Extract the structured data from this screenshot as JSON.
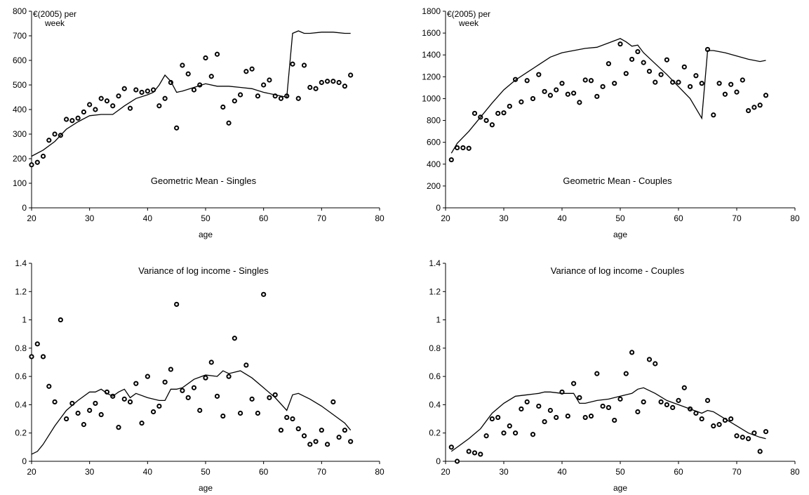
{
  "chart_data": [
    {
      "type": "scatter",
      "title": "Geometric Mean - Singles",
      "unit_label": [
        "€(2005) per",
        "week"
      ],
      "xlabel": "age",
      "ylabel": "",
      "xlim": [
        20,
        80
      ],
      "ylim": [
        0,
        800
      ],
      "xticks": [
        20,
        30,
        40,
        50,
        60,
        70,
        80
      ],
      "yticks": [
        0,
        100,
        200,
        300,
        400,
        500,
        600,
        700,
        800
      ],
      "series": [
        {
          "kind": "points",
          "x": [
            20,
            21,
            22,
            23,
            24,
            25,
            26,
            27,
            28,
            29,
            30,
            31,
            32,
            33,
            34,
            35,
            36,
            37,
            38,
            39,
            40,
            41,
            42,
            43,
            44,
            45,
            46,
            47,
            48,
            49,
            50,
            51,
            52,
            53,
            54,
            55,
            56,
            57,
            58,
            59,
            60,
            61,
            62,
            63,
            64,
            65,
            66,
            67,
            68,
            69,
            70,
            71,
            72,
            73,
            74,
            75
          ],
          "y": [
            175,
            185,
            210,
            275,
            300,
            295,
            360,
            355,
            365,
            390,
            420,
            400,
            445,
            435,
            415,
            455,
            485,
            405,
            480,
            470,
            475,
            480,
            415,
            445,
            510,
            325,
            580,
            545,
            480,
            500,
            610,
            535,
            625,
            410,
            345,
            435,
            460,
            555,
            565,
            455,
            500,
            520,
            455,
            445,
            455,
            585,
            445,
            580,
            490,
            485,
            510,
            515,
            515,
            510,
            495,
            540
          ]
        },
        {
          "kind": "line",
          "x": [
            20,
            22,
            24,
            26,
            28,
            30,
            32,
            34,
            36,
            38,
            40,
            41,
            42,
            43,
            44,
            45,
            46,
            48,
            50,
            52,
            54,
            56,
            58,
            60,
            62,
            64,
            65,
            66,
            67,
            68,
            70,
            72,
            74,
            75
          ],
          "y": [
            210,
            235,
            270,
            320,
            350,
            375,
            380,
            380,
            415,
            445,
            460,
            470,
            500,
            540,
            515,
            470,
            475,
            490,
            505,
            495,
            495,
            490,
            485,
            470,
            460,
            450,
            710,
            720,
            710,
            710,
            715,
            715,
            710,
            710
          ]
        }
      ]
    },
    {
      "type": "scatter",
      "title": "Geometric Mean - Couples",
      "unit_label": [
        "€(2005) per",
        "week"
      ],
      "xlabel": "age",
      "ylabel": "",
      "xlim": [
        20,
        80
      ],
      "ylim": [
        0,
        1800
      ],
      "xticks": [
        20,
        30,
        40,
        50,
        60,
        70,
        80
      ],
      "yticks": [
        0,
        200,
        400,
        600,
        800,
        1000,
        1200,
        1400,
        1600,
        1800
      ],
      "series": [
        {
          "kind": "points",
          "x": [
            21,
            22,
            23,
            24,
            25,
            26,
            27,
            28,
            29,
            30,
            31,
            32,
            33,
            34,
            35,
            36,
            37,
            38,
            39,
            40,
            41,
            42,
            43,
            44,
            45,
            46,
            47,
            48,
            49,
            50,
            51,
            52,
            53,
            54,
            55,
            56,
            57,
            58,
            59,
            60,
            61,
            62,
            63,
            64,
            65,
            66,
            67,
            68,
            69,
            70,
            71,
            72,
            73,
            74,
            75
          ],
          "y": [
            440,
            550,
            550,
            545,
            865,
            830,
            800,
            760,
            865,
            870,
            930,
            1175,
            970,
            1165,
            1000,
            1220,
            1065,
            1030,
            1080,
            1140,
            1040,
            1050,
            965,
            1170,
            1165,
            1020,
            1110,
            1320,
            1140,
            1500,
            1230,
            1360,
            1430,
            1330,
            1250,
            1150,
            1220,
            1355,
            1150,
            1150,
            1290,
            1110,
            1210,
            1140,
            1450,
            850,
            1140,
            1040,
            1130,
            1060,
            1170,
            890,
            920,
            940,
            1030
          ]
        },
        {
          "kind": "line",
          "x": [
            21,
            22,
            24,
            26,
            28,
            30,
            32,
            34,
            36,
            38,
            40,
            42,
            44,
            46,
            48,
            50,
            51,
            52,
            53,
            54,
            56,
            58,
            60,
            62,
            64,
            65,
            66,
            68,
            70,
            72,
            74,
            75
          ],
          "y": [
            500,
            590,
            700,
            830,
            960,
            1080,
            1170,
            1240,
            1310,
            1380,
            1420,
            1440,
            1460,
            1470,
            1510,
            1550,
            1520,
            1480,
            1490,
            1420,
            1320,
            1220,
            1110,
            1000,
            820,
            1440,
            1440,
            1420,
            1390,
            1360,
            1340,
            1350
          ]
        }
      ]
    },
    {
      "type": "scatter",
      "title": "Variance of log income - Singles",
      "xlabel": "age",
      "ylabel": "",
      "xlim": [
        20,
        80
      ],
      "ylim": [
        0,
        1.4
      ],
      "xticks": [
        20,
        30,
        40,
        50,
        60,
        70,
        80
      ],
      "yticks": [
        0,
        0.2,
        0.4,
        0.6,
        0.8,
        1,
        1.2,
        1.4
      ],
      "series": [
        {
          "kind": "points",
          "x": [
            20,
            21,
            22,
            23,
            24,
            25,
            26,
            27,
            28,
            29,
            30,
            31,
            32,
            33,
            34,
            35,
            36,
            37,
            38,
            39,
            40,
            41,
            42,
            43,
            44,
            45,
            46,
            47,
            48,
            49,
            50,
            51,
            52,
            53,
            54,
            55,
            56,
            57,
            58,
            59,
            60,
            61,
            62,
            63,
            64,
            65,
            66,
            67,
            68,
            69,
            70,
            71,
            72,
            73,
            74,
            75
          ],
          "y": [
            0.74,
            0.83,
            0.74,
            0.53,
            0.42,
            1.0,
            0.3,
            0.41,
            0.34,
            0.26,
            0.36,
            0.41,
            0.33,
            0.49,
            0.46,
            0.24,
            0.44,
            0.42,
            0.55,
            0.27,
            0.6,
            0.35,
            0.39,
            0.56,
            0.65,
            1.11,
            0.5,
            0.45,
            0.52,
            0.36,
            0.59,
            0.7,
            0.46,
            0.32,
            0.6,
            0.87,
            0.34,
            0.68,
            0.44,
            0.34,
            1.18,
            0.45,
            0.47,
            0.22,
            0.31,
            0.3,
            0.23,
            0.18,
            0.12,
            0.14,
            0.22,
            0.12,
            0.42,
            0.17,
            0.22,
            0.14
          ]
        },
        {
          "kind": "line",
          "x": [
            20,
            21,
            22,
            24,
            26,
            28,
            30,
            31,
            32,
            33,
            34,
            35,
            36,
            37,
            38,
            40,
            42,
            43,
            44,
            45,
            46,
            48,
            50,
            52,
            53,
            54,
            56,
            58,
            60,
            62,
            64,
            65,
            66,
            68,
            70,
            72,
            74,
            75
          ],
          "y": [
            0.05,
            0.07,
            0.12,
            0.25,
            0.36,
            0.43,
            0.49,
            0.49,
            0.51,
            0.48,
            0.46,
            0.49,
            0.51,
            0.45,
            0.48,
            0.45,
            0.43,
            0.43,
            0.51,
            0.51,
            0.52,
            0.58,
            0.61,
            0.6,
            0.64,
            0.62,
            0.64,
            0.59,
            0.52,
            0.45,
            0.36,
            0.47,
            0.48,
            0.44,
            0.39,
            0.33,
            0.27,
            0.22
          ]
        }
      ]
    },
    {
      "type": "scatter",
      "title": "Variance of log income - Couples",
      "xlabel": "age",
      "ylabel": "",
      "xlim": [
        20,
        80
      ],
      "ylim": [
        0,
        1.4
      ],
      "xticks": [
        20,
        30,
        40,
        50,
        60,
        70,
        80
      ],
      "yticks": [
        0,
        0.2,
        0.4,
        0.6,
        0.8,
        1,
        1.2,
        1.4
      ],
      "series": [
        {
          "kind": "points",
          "x": [
            21,
            22,
            24,
            25,
            26,
            27,
            28,
            29,
            30,
            31,
            32,
            33,
            34,
            35,
            36,
            37,
            38,
            39,
            40,
            41,
            42,
            43,
            44,
            45,
            46,
            47,
            48,
            49,
            50,
            51,
            52,
            53,
            54,
            55,
            56,
            57,
            58,
            59,
            60,
            61,
            62,
            63,
            64,
            65,
            66,
            67,
            68,
            69,
            70,
            71,
            72,
            73,
            74,
            75
          ],
          "y": [
            0.1,
            0.0,
            0.07,
            0.06,
            0.05,
            0.18,
            0.3,
            0.31,
            0.2,
            0.25,
            0.2,
            0.37,
            0.42,
            0.19,
            0.39,
            0.28,
            0.36,
            0.31,
            0.49,
            0.32,
            0.55,
            0.45,
            0.31,
            0.32,
            0.62,
            0.39,
            0.38,
            0.29,
            0.44,
            0.62,
            0.77,
            0.35,
            0.42,
            0.72,
            0.69,
            0.42,
            0.4,
            0.38,
            0.43,
            0.52,
            0.37,
            0.34,
            0.3,
            0.43,
            0.25,
            0.26,
            0.29,
            0.3,
            0.18,
            0.17,
            0.16,
            0.2,
            0.07,
            0.21
          ]
        },
        {
          "kind": "line",
          "x": [
            21,
            22,
            24,
            26,
            28,
            30,
            32,
            34,
            36,
            37,
            38,
            40,
            42,
            43,
            44,
            46,
            48,
            50,
            51,
            52,
            53,
            54,
            55,
            56,
            58,
            60,
            62,
            64,
            65,
            66,
            68,
            70,
            72,
            74,
            75
          ],
          "y": [
            0.07,
            0.1,
            0.16,
            0.23,
            0.34,
            0.41,
            0.46,
            0.47,
            0.48,
            0.49,
            0.49,
            0.48,
            0.48,
            0.41,
            0.41,
            0.43,
            0.44,
            0.46,
            0.47,
            0.48,
            0.51,
            0.52,
            0.5,
            0.48,
            0.43,
            0.4,
            0.37,
            0.34,
            0.36,
            0.35,
            0.3,
            0.25,
            0.2,
            0.17,
            0.16
          ]
        }
      ]
    }
  ]
}
